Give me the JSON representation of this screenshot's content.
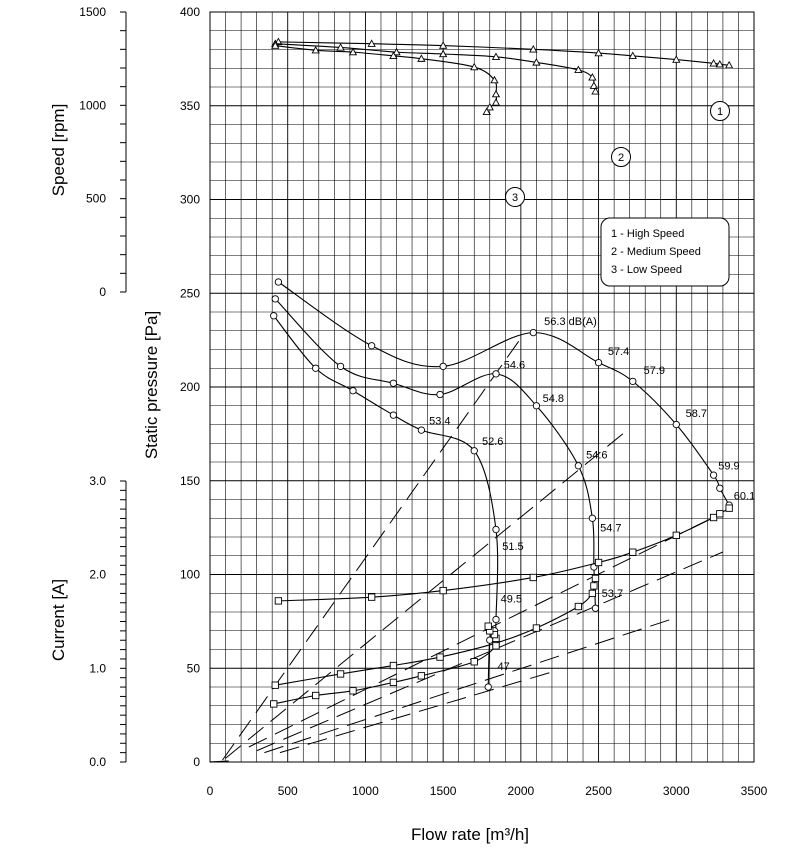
{
  "chart_data": {
    "type": "line",
    "title": "",
    "xlabel": "Flow rate [m³/h]",
    "x_axis": {
      "min": 0,
      "max": 3500,
      "ticks": [
        0,
        500,
        1000,
        1500,
        2000,
        2500,
        3000,
        3500
      ]
    },
    "pressure_axis": {
      "label": "Static pressure [Pa]",
      "min": 0,
      "max": 400,
      "ticks": [
        0,
        50,
        100,
        150,
        200,
        250,
        300,
        350,
        400
      ]
    },
    "speed_axis": {
      "label": "Speed [rpm]",
      "min": 0,
      "max": 1500,
      "ticks": [
        0,
        500,
        1000,
        1500
      ]
    },
    "current_axis": {
      "label": "Current [A]",
      "min": 0,
      "max": 3.0,
      "ticks": [
        "0.0",
        "1.0",
        "2.0",
        "3.0"
      ]
    },
    "grid": true,
    "legend": {
      "placement": "right",
      "entries": [
        "1 - High Speed",
        "2 - Medium Speed",
        "3 - Low Speed"
      ]
    },
    "speed_series": [
      {
        "id": "1",
        "label": "1",
        "x": [
          440,
          1040,
          1500,
          2080,
          2500,
          2720,
          3000,
          3240,
          3280,
          3340
        ],
        "y": [
          1340,
          1330,
          1320,
          1300,
          1280,
          1265,
          1245,
          1225,
          1220,
          1215
        ]
      },
      {
        "id": "2",
        "label": "2",
        "x": [
          420,
          840,
          1200,
          1500,
          1840,
          2100,
          2370,
          2460,
          2470,
          2480
        ],
        "y": [
          1330,
          1310,
          1285,
          1275,
          1260,
          1230,
          1190,
          1150,
          1105,
          1075
        ]
      },
      {
        "id": "3",
        "label": "3",
        "x": [
          420,
          680,
          920,
          1180,
          1360,
          1700,
          1830,
          1840,
          1840,
          1800,
          1780
        ],
        "y": [
          1320,
          1295,
          1285,
          1265,
          1250,
          1205,
          1135,
          1060,
          1015,
          990,
          965
        ]
      }
    ],
    "pressure_series": [
      {
        "id": "1",
        "x": [
          440,
          1040,
          1500,
          2080,
          2500,
          2720,
          3000,
          3240,
          3280,
          3340
        ],
        "y": [
          256,
          222,
          211,
          229,
          213,
          203,
          180,
          153,
          146,
          137
        ]
      },
      {
        "id": "2",
        "x": [
          420,
          840,
          1180,
          1480,
          1840,
          2100,
          2370,
          2460,
          2470,
          2480
        ],
        "y": [
          247,
          211,
          202,
          196,
          207,
          190,
          158,
          130,
          104,
          82
        ]
      },
      {
        "id": "3",
        "x": [
          410,
          680,
          920,
          1180,
          1360,
          1700,
          1840,
          1840,
          1830,
          1800,
          1790
        ],
        "y": [
          238,
          210,
          198,
          185,
          177,
          166,
          124,
          76,
          70,
          65,
          40
        ]
      }
    ],
    "current_series": [
      {
        "id": "1",
        "x": [
          440,
          1040,
          1500,
          2080,
          2500,
          2720,
          3000,
          3240,
          3280,
          3340
        ],
        "y": [
          1.72,
          1.76,
          1.83,
          1.97,
          2.13,
          2.24,
          2.42,
          2.61,
          2.65,
          2.71
        ]
      },
      {
        "id": "2",
        "x": [
          420,
          840,
          1180,
          1480,
          1840,
          2100,
          2370,
          2460,
          2470,
          2480
        ],
        "y": [
          0.82,
          0.94,
          1.03,
          1.12,
          1.27,
          1.43,
          1.66,
          1.8,
          1.88,
          1.96
        ]
      },
      {
        "id": "3",
        "x": [
          410,
          680,
          920,
          1180,
          1360,
          1700,
          1840,
          1840,
          1830,
          1800,
          1790
        ],
        "y": [
          0.62,
          0.71,
          0.76,
          0.85,
          0.92,
          1.07,
          1.24,
          1.32,
          1.36,
          1.4,
          1.45
        ]
      }
    ],
    "sound_annotations": [
      {
        "text": "56.3 dB(A)",
        "x": 2150,
        "p": 233
      },
      {
        "text": "57.4",
        "x": 2560,
        "p": 217
      },
      {
        "text": "57.9",
        "x": 2790,
        "p": 207
      },
      {
        "text": "58.7",
        "x": 3060,
        "p": 184
      },
      {
        "text": "59.9",
        "x": 3270,
        "p": 156
      },
      {
        "text": "60.1",
        "x": 3370,
        "p": 140
      },
      {
        "text": "54.6",
        "x": 1890,
        "p": 210
      },
      {
        "text": "54.8",
        "x": 2140,
        "p": 192
      },
      {
        "text": "54.6",
        "x": 2420,
        "p": 162
      },
      {
        "text": "54.7",
        "x": 2510,
        "p": 123
      },
      {
        "text": "53.7",
        "x": 2520,
        "p": 88
      },
      {
        "text": "53.4",
        "x": 1410,
        "p": 180
      },
      {
        "text": "52.6",
        "x": 1750,
        "p": 169
      },
      {
        "text": "51.5",
        "x": 1880,
        "p": 113
      },
      {
        "text": "49.5",
        "x": 1870,
        "p": 85
      },
      {
        "text": "47",
        "x": 1850,
        "p": 49
      }
    ],
    "system_curves": [
      {
        "x": [
          80,
          2000
        ],
        "p": [
          1,
          226
        ]
      },
      {
        "x": [
          100,
          2700
        ],
        "p": [
          2,
          178
        ]
      },
      {
        "x": [
          250,
          3300
        ],
        "p": [
          8,
          133
        ]
      },
      {
        "x": [
          300,
          3300
        ],
        "p": [
          6,
          112
        ]
      },
      {
        "x": [
          350,
          3000
        ],
        "p": [
          5,
          77
        ]
      },
      {
        "x": [
          450,
          2200
        ],
        "p": [
          5,
          48
        ]
      }
    ]
  }
}
